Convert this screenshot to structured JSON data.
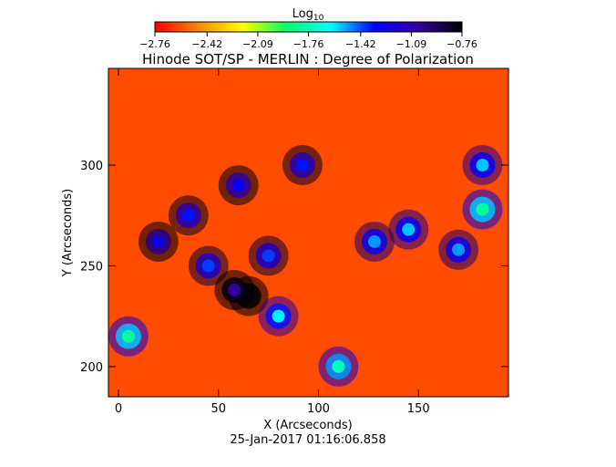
{
  "chart_data": {
    "type": "heatmap",
    "title": "Hinode SOT/SP - MERLIN : Degree of Polarization",
    "xlabel": "X (Arcseconds)",
    "ylabel": "Y (Arcseconds)",
    "xlim": [
      -5,
      195
    ],
    "ylim": [
      185,
      348
    ],
    "x_ticks": [
      0,
      50,
      100,
      150
    ],
    "x_tick_labels": [
      "0",
      "50",
      "100",
      "150"
    ],
    "y_ticks": [
      200,
      250,
      300
    ],
    "y_tick_labels": [
      "200",
      "250",
      "300"
    ],
    "colorbar": {
      "label_base": "Log",
      "label_subscript": "10",
      "range": [
        -2.76,
        -0.76
      ],
      "tick_values": [
        -2.76,
        -2.42,
        -2.09,
        -1.76,
        -1.42,
        -1.09,
        -0.76
      ],
      "tick_labels": [
        "−2.76",
        "−2.42",
        "−2.09",
        "−1.76",
        "−1.42",
        "−1.09",
        "−0.76"
      ],
      "colormap": [
        "#ff0000",
        "#ff8800",
        "#ffff00",
        "#00ff66",
        "#00ffff",
        "#0000ff",
        "#3000a0",
        "#000000"
      ]
    },
    "polarization_features": [
      {
        "x": 20,
        "y": 262,
        "value": -1.25
      },
      {
        "x": 35,
        "y": 275,
        "value": -1.35
      },
      {
        "x": 45,
        "y": 250,
        "value": -1.4
      },
      {
        "x": 60,
        "y": 290,
        "value": -1.3
      },
      {
        "x": 65,
        "y": 235,
        "value": -0.8
      },
      {
        "x": 58,
        "y": 238,
        "value": -1.05
      },
      {
        "x": 75,
        "y": 255,
        "value": -1.4
      },
      {
        "x": 92,
        "y": 300,
        "value": -1.35
      },
      {
        "x": 80,
        "y": 225,
        "value": -1.6
      },
      {
        "x": 128,
        "y": 262,
        "value": -1.5
      },
      {
        "x": 145,
        "y": 268,
        "value": -1.55
      },
      {
        "x": 170,
        "y": 258,
        "value": -1.5
      },
      {
        "x": 182,
        "y": 278,
        "value": -1.8
      },
      {
        "x": 182,
        "y": 300,
        "value": -1.55
      },
      {
        "x": 110,
        "y": 200,
        "value": -1.75
      },
      {
        "x": 5,
        "y": 215,
        "value": -1.8
      }
    ],
    "background_value": -2.6,
    "grid": false,
    "legend": "none"
  },
  "footer": {
    "timestamp": "25-Jan-2017 01:16:06.858"
  }
}
